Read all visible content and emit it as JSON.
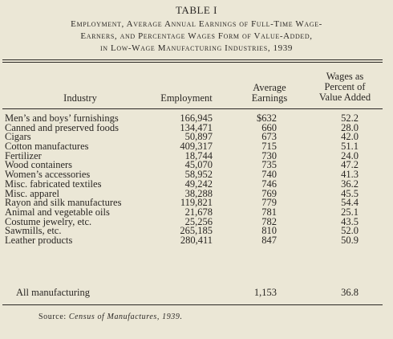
{
  "table_label": "TABLE I",
  "title_lines": [
    "Employment, Average Annual Earnings of Full-Time Wage-",
    "Earners, and Percentage Wages Form of Value-Added,",
    "in Low-Wage Manufacturing Industries, 1939"
  ],
  "headers": {
    "industry": "Industry",
    "employment": "Employment",
    "earnings_line1": "Average",
    "earnings_line2": "Earnings",
    "wages_line1": "Wages as",
    "wages_line2": "Percent of",
    "wages_line3": "Value Added"
  },
  "rows": [
    {
      "industry": "Men’s and boys’ furnishings",
      "employment": "166,945",
      "earnings": "$632",
      "wages": "52.2"
    },
    {
      "industry": "Canned and preserved foods",
      "employment": "134,471",
      "earnings": "660",
      "wages": "28.0"
    },
    {
      "industry": "Cigars",
      "employment": "50,897",
      "earnings": "673",
      "wages": "42.0"
    },
    {
      "industry": "Cotton manufactures",
      "employment": "409,317",
      "earnings": "715",
      "wages": "51.1"
    },
    {
      "industry": "Fertilizer",
      "employment": "18,744",
      "earnings": "730",
      "wages": "24.0"
    },
    {
      "industry": "Wood containers",
      "employment": "45,070",
      "earnings": "735",
      "wages": "47.2"
    },
    {
      "industry": "Women’s accessories",
      "employment": "58,952",
      "earnings": "740",
      "wages": "41.3"
    },
    {
      "industry": "Misc. fabricated textiles",
      "employment": "49,242",
      "earnings": "746",
      "wages": "36.2"
    },
    {
      "industry": "Misc. apparel",
      "employment": "38,288",
      "earnings": "769",
      "wages": "45.5"
    },
    {
      "industry": "Rayon and silk manufactures",
      "employment": "119,821",
      "earnings": "779",
      "wages": "54.4"
    },
    {
      "industry": "Animal and vegetable oils",
      "employment": "21,678",
      "earnings": "781",
      "wages": "25.1"
    },
    {
      "industry": "Costume jewelry, etc.",
      "employment": "25,256",
      "earnings": "782",
      "wages": "43.5"
    },
    {
      "industry": "Sawmills, etc.",
      "employment": "265,185",
      "earnings": "810",
      "wages": "52.0"
    },
    {
      "industry": "Leather products",
      "employment": "280,411",
      "earnings": "847",
      "wages": "50.9"
    }
  ],
  "all_manufacturing": {
    "industry": "All manufacturing",
    "earnings": "1,153",
    "wages": "36.8"
  },
  "source": {
    "prefix": "Source:",
    "publication": "Census of Manufactures, 1939."
  }
}
